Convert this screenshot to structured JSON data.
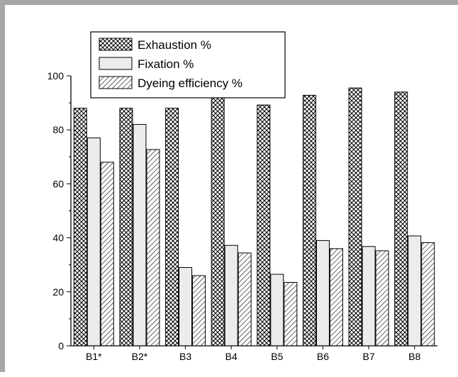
{
  "chart_data": {
    "type": "bar",
    "title": "",
    "xlabel": "",
    "ylabel": "",
    "ylim": [
      0,
      100
    ],
    "yticks": [
      0,
      20,
      40,
      60,
      80,
      100
    ],
    "grid": false,
    "legend_position": "top-left",
    "categories": [
      "B1*",
      "B2*",
      "B3",
      "B4",
      "B5",
      "B6",
      "B7",
      "B8"
    ],
    "series": [
      {
        "name": "Exhaustion %",
        "pattern": "crosshatch",
        "values": [
          88,
          88,
          88,
          92.5,
          89.2,
          92.8,
          95.5,
          94
        ]
      },
      {
        "name": "Fixation %",
        "pattern": "solid-light-gray",
        "values": [
          77,
          82,
          29,
          37.2,
          26.5,
          39,
          36.8,
          40.7
        ]
      },
      {
        "name": "Dyeing efficiency %",
        "pattern": "diagonal-hatch",
        "values": [
          68,
          72.7,
          26,
          34.4,
          23.5,
          36,
          35.2,
          38.2
        ]
      }
    ],
    "colors": {
      "fill_light": "#ececec",
      "stroke": "#000000"
    }
  }
}
